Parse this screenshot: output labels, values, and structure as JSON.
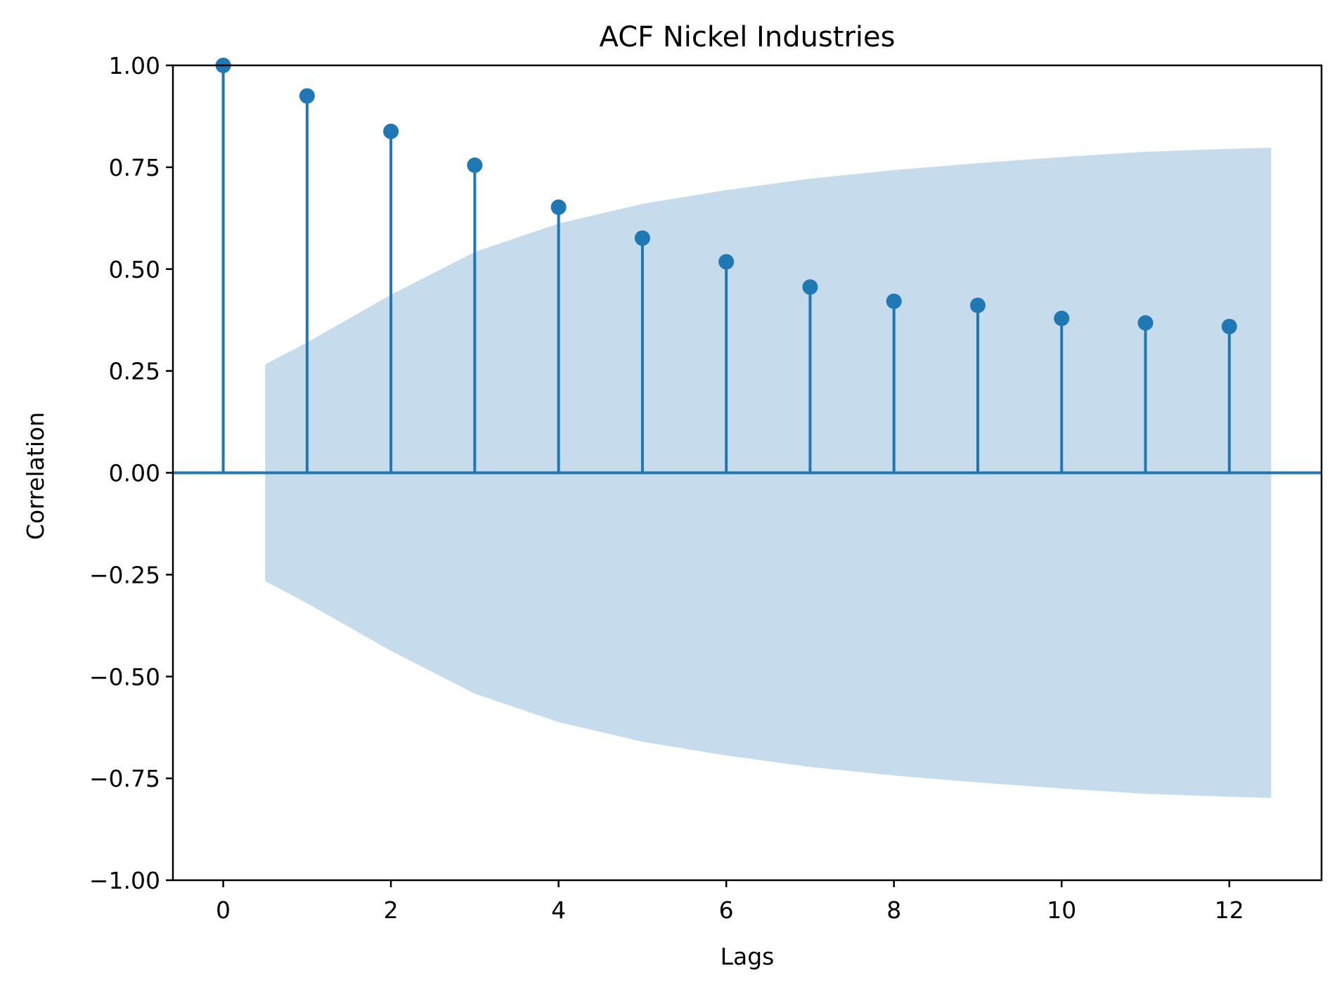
{
  "chart_data": {
    "type": "stem",
    "title": "ACF Nickel Industries",
    "xlabel": "Lags",
    "ylabel": "Correlation",
    "xlim": [
      -0.6,
      13.1
    ],
    "ylim": [
      -1.0,
      1.0
    ],
    "xticks": [
      0,
      2,
      4,
      6,
      8,
      10,
      12
    ],
    "yticks": [
      1.0,
      0.75,
      0.5,
      0.25,
      0.0,
      -0.25,
      -0.5,
      -0.75,
      -1.0
    ],
    "ytick_labels": [
      "1.00",
      "0.75",
      "0.50",
      "0.25",
      "0.00",
      "−0.25",
      "−0.50",
      "−0.75",
      "−1.00"
    ],
    "xtick_labels": [
      "0",
      "2",
      "4",
      "6",
      "8",
      "10",
      "12"
    ],
    "grid": false,
    "series": [
      {
        "lags": [
          0,
          1,
          2,
          3,
          4,
          5,
          6,
          7,
          8,
          9,
          10,
          11,
          12
        ],
        "values": [
          1.0,
          0.925,
          0.838,
          0.755,
          0.652,
          0.576,
          0.518,
          0.456,
          0.421,
          0.411,
          0.379,
          0.368,
          0.359
        ]
      }
    ],
    "confidence_band": {
      "x": [
        0.5,
        1,
        2,
        3,
        4,
        5,
        6,
        7,
        8,
        9,
        10,
        11,
        12,
        12.5
      ],
      "upper": [
        0.266,
        0.32,
        0.437,
        0.542,
        0.612,
        0.66,
        0.694,
        0.722,
        0.743,
        0.76,
        0.775,
        0.788,
        0.795,
        0.798
      ]
    },
    "colors": {
      "stem": "#1f77b4",
      "band": "#c6dcec",
      "axis": "#000000"
    }
  }
}
